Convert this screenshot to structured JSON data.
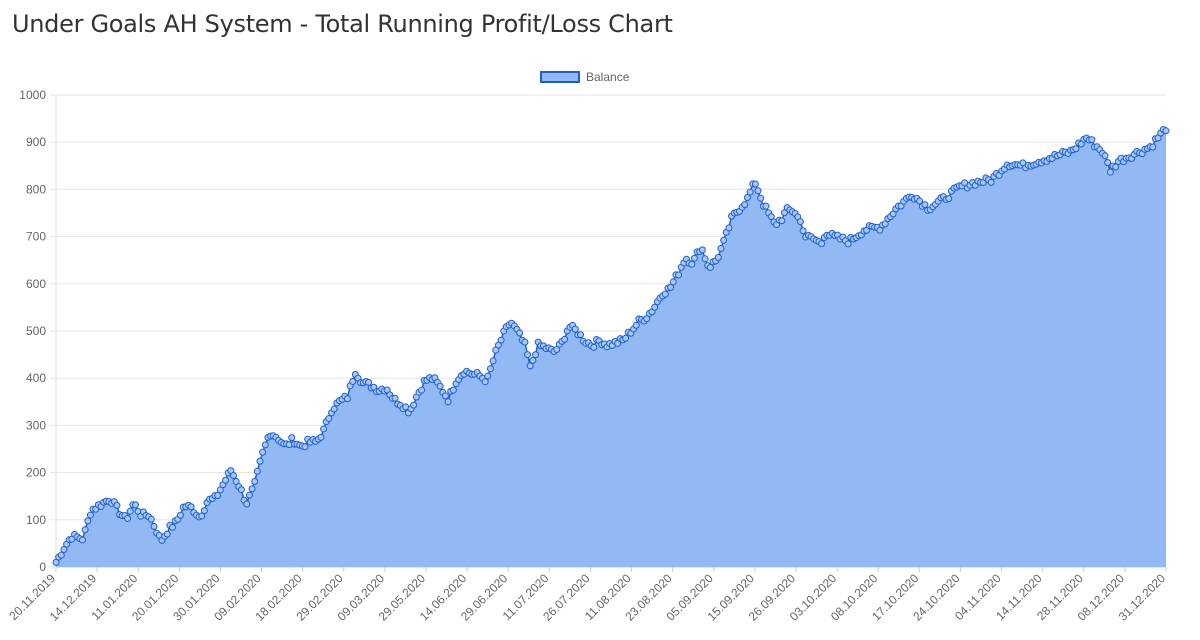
{
  "page": {
    "title": "Under Goals AH System - Total Running Profit/Loss Chart"
  },
  "colors": {
    "fill": "#93b9f5",
    "line": "#1e5fce",
    "point_fill": "#a7c8f7",
    "grid": "#e6e6e6",
    "axis_text": "#666666"
  },
  "chart_data": {
    "type": "area",
    "title": "Under Goals AH System - Total Running Profit/Loss Chart",
    "legend": {
      "position": "top",
      "entries": [
        "Balance"
      ]
    },
    "ylim": [
      0,
      1000
    ],
    "y_ticks": [
      "0",
      "100",
      "200",
      "300",
      "400",
      "500",
      "600",
      "700",
      "800",
      "900",
      "1000"
    ],
    "grid": true,
    "x_tick_labels": [
      "20.11.2019",
      "14.12.2019",
      "11.01.2020",
      "20.01.2020",
      "30.01.2020",
      "09.02.2020",
      "18.02.2020",
      "29.02.2020",
      "09.03.2020",
      "29.05.2020",
      "14.06.2020",
      "29.06.2020",
      "11.07.2020",
      "26.07.2020",
      "11.08.2020",
      "23.08.2020",
      "05.09.2020",
      "15.09.2020",
      "26.09.2020",
      "03.10.2020",
      "08.10.2020",
      "17.10.2020",
      "24.10.2020",
      "04.11.2020",
      "14.11.2020",
      "28.11.2020",
      "08.12.2020",
      "31.12.2020"
    ],
    "series": [
      {
        "name": "Balance",
        "anchors": [
          [
            0.0,
            10
          ],
          [
            0.01,
            40
          ],
          [
            0.02,
            65
          ],
          [
            0.035,
            60
          ],
          [
            0.045,
            120
          ],
          [
            0.06,
            135
          ],
          [
            0.07,
            145
          ],
          [
            0.08,
            120
          ],
          [
            0.09,
            100
          ],
          [
            0.1,
            135
          ],
          [
            0.11,
            110
          ],
          [
            0.12,
            110
          ],
          [
            0.13,
            75
          ],
          [
            0.135,
            55
          ],
          [
            0.145,
            80
          ],
          [
            0.155,
            95
          ],
          [
            0.165,
            130
          ],
          [
            0.175,
            125
          ],
          [
            0.185,
            105
          ],
          [
            0.195,
            140
          ],
          [
            0.205,
            145
          ],
          [
            0.215,
            175
          ],
          [
            0.225,
            205
          ],
          [
            0.235,
            175
          ],
          [
            0.245,
            135
          ],
          [
            0.255,
            170
          ],
          [
            0.265,
            235
          ],
          [
            0.275,
            285
          ],
          [
            0.285,
            275
          ],
          [
            0.295,
            255
          ],
          [
            0.305,
            270
          ],
          [
            0.315,
            255
          ],
          [
            0.325,
            265
          ],
          [
            0.335,
            265
          ],
          [
            0.345,
            290
          ],
          [
            0.355,
            335
          ],
          [
            0.365,
            350
          ],
          [
            0.375,
            360
          ],
          [
            0.385,
            415
          ],
          [
            0.395,
            390
          ],
          [
            0.405,
            385
          ],
          [
            0.415,
            375
          ],
          [
            0.425,
            380
          ],
          [
            0.435,
            355
          ],
          [
            0.445,
            345
          ],
          [
            0.455,
            330
          ],
          [
            0.465,
            365
          ],
          [
            0.475,
            395
          ],
          [
            0.485,
            400
          ],
          [
            0.495,
            380
          ],
          [
            0.505,
            355
          ],
          [
            0.515,
            395
          ],
          [
            0.525,
            415
          ],
          [
            0.535,
            410
          ],
          [
            0.545,
            405
          ],
          [
            0.555,
            395
          ],
          [
            0.565,
            450
          ],
          [
            0.575,
            490
          ],
          [
            0.585,
            520
          ],
          [
            0.595,
            495
          ],
          [
            0.605,
            465
          ],
          [
            0.61,
            420
          ],
          [
            0.62,
            470
          ],
          [
            0.63,
            465
          ],
          [
            0.64,
            455
          ],
          [
            0.65,
            470
          ],
          [
            0.66,
            510
          ],
          [
            0.67,
            500
          ],
          [
            0.68,
            480
          ],
          [
            0.69,
            470
          ],
          [
            0.7,
            480
          ],
          [
            0.71,
            470
          ],
          [
            0.72,
            475
          ],
          [
            0.73,
            480
          ],
          [
            0.74,
            500
          ],
          [
            0.75,
            520
          ],
          [
            0.76,
            530
          ],
          [
            0.77,
            550
          ],
          [
            0.78,
            580
          ],
          [
            0.79,
            590
          ],
          [
            0.8,
            620
          ],
          [
            0.81,
            655
          ],
          [
            0.82,
            645
          ],
          [
            0.83,
            680
          ],
          [
            0.84,
            635
          ],
          [
            0.85,
            650
          ],
          [
            0.86,
            690
          ],
          [
            0.87,
            740
          ],
          [
            0.88,
            760
          ],
          [
            0.89,
            780
          ],
          [
            0.895,
            800
          ],
          [
            0.9,
            815
          ],
          [
            0.91,
            770
          ],
          [
            0.92,
            740
          ],
          [
            0.925,
            725
          ],
          [
            0.935,
            740
          ],
          [
            0.94,
            755
          ],
          [
            0.95,
            755
          ],
          [
            0.96,
            725
          ],
          [
            0.965,
            700
          ],
          [
            0.975,
            695
          ],
          [
            0.985,
            685
          ],
          [
            0.99,
            710
          ],
          [
            1.0,
            700
          ]
        ],
        "values_note_segment_2": [
          [
            0.0,
            700
          ],
          [
            0.02,
            690
          ],
          [
            0.04,
            715
          ],
          [
            0.06,
            720
          ],
          [
            0.08,
            760
          ],
          [
            0.1,
            790
          ],
          [
            0.12,
            760
          ],
          [
            0.14,
            780
          ],
          [
            0.16,
            805
          ],
          [
            0.18,
            815
          ],
          [
            0.2,
            820
          ],
          [
            0.22,
            855
          ],
          [
            0.24,
            850
          ],
          [
            0.26,
            860
          ],
          [
            0.28,
            870
          ],
          [
            0.3,
            880
          ],
          [
            0.32,
            910
          ],
          [
            0.34,
            880
          ],
          [
            0.35,
            840
          ],
          [
            0.36,
            860
          ],
          [
            0.38,
            875
          ],
          [
            0.4,
            890
          ],
          [
            0.42,
            930
          ]
        ]
      }
    ]
  }
}
